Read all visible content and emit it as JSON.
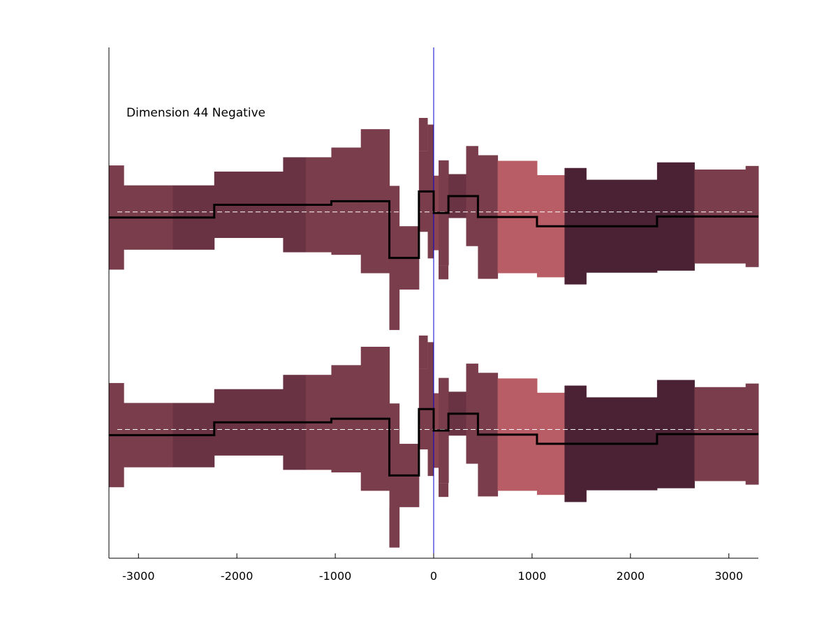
{
  "chart_data": {
    "type": "step-band",
    "title": "",
    "annotation": "Dimension 44 Negative",
    "xlabel": "",
    "ylabel": "",
    "xlim": [
      -3300,
      3300
    ],
    "ylim": [
      0,
      100
    ],
    "xticks": [
      -3000,
      -2000,
      -1000,
      0,
      1000,
      2000,
      3000
    ],
    "xtick_labels": [
      "-3000",
      "-2000",
      "-1000",
      "0",
      "1000",
      "2000",
      "3000"
    ],
    "y_axis_ticks_shown": false,
    "grid": false,
    "zero_line_color": "#0000cc",
    "baseline_color": "#ffffff",
    "line_color": "#000000",
    "segments": [
      {
        "x0": -3300,
        "x1": -3150,
        "center": 66.7,
        "half": 10.2,
        "color": "#7a3d4b"
      },
      {
        "x0": -3150,
        "x1": -2650,
        "center": 66.7,
        "half": 6.3,
        "color": "#7a3d4b"
      },
      {
        "x0": -2650,
        "x1": -2230,
        "center": 66.7,
        "half": 6.3,
        "color": "#6a3344"
      },
      {
        "x0": -2230,
        "x1": -1530,
        "center": 69.2,
        "half": 6.5,
        "color": "#6a3344"
      },
      {
        "x0": -1530,
        "x1": -1300,
        "center": 69.2,
        "half": 9.3,
        "color": "#6a3344"
      },
      {
        "x0": -1300,
        "x1": -1040,
        "center": 69.2,
        "half": 9.3,
        "color": "#7a3d4b"
      },
      {
        "x0": -1040,
        "x1": -740,
        "center": 69.9,
        "half": 10.5,
        "color": "#7a3d4b"
      },
      {
        "x0": -740,
        "x1": -450,
        "center": 69.9,
        "half": 14.1,
        "color": "#7a3d4b"
      },
      {
        "x0": -450,
        "x1": -350,
        "center": 58.8,
        "half": 14.1,
        "color": "#7a3d4b"
      },
      {
        "x0": -350,
        "x1": -150,
        "center": 58.8,
        "half": 6.2,
        "color": "#7a3d4b"
      },
      {
        "x0": -150,
        "x1": -60,
        "center": 71.8,
        "half": 7.9,
        "color": "#7a3d4b"
      },
      {
        "x0": -60,
        "x1": 0,
        "center": 71.8,
        "half": 13.1,
        "color": "#7a3d4b"
      },
      {
        "x0": 0,
        "x1": 50,
        "center": 67.6,
        "half": 7.3,
        "color": "#8b4452"
      },
      {
        "x0": 50,
        "x1": 150,
        "center": 67.6,
        "half": 10.3,
        "color": "#7a3d4b"
      },
      {
        "x0": 150,
        "x1": 330,
        "center": 70.9,
        "half": 4.3,
        "color": "#6a3344"
      },
      {
        "x0": 330,
        "x1": 450,
        "center": 70.9,
        "half": 9.8,
        "color": "#7a3d4b"
      },
      {
        "x0": 450,
        "x1": 650,
        "center": 66.8,
        "half": 12.1,
        "color": "#7a3d4b"
      },
      {
        "x0": 650,
        "x1": 1050,
        "center": 66.8,
        "half": 11.0,
        "color": "#b85c65"
      },
      {
        "x0": 1050,
        "x1": 1330,
        "center": 65.0,
        "half": 10.0,
        "color": "#b85c65"
      },
      {
        "x0": 1330,
        "x1": 1550,
        "center": 65.0,
        "half": 11.4,
        "color": "#4a2234"
      },
      {
        "x0": 1550,
        "x1": 2270,
        "center": 65.0,
        "half": 9.1,
        "color": "#4a2234"
      },
      {
        "x0": 2270,
        "x1": 2650,
        "center": 66.9,
        "half": 10.6,
        "color": "#4a2234"
      },
      {
        "x0": 2650,
        "x1": 3170,
        "center": 66.9,
        "half": 9.2,
        "color": "#7a3d4b"
      },
      {
        "x0": 3170,
        "x1": 3300,
        "center": 66.9,
        "half": 9.9,
        "color": "#7a3d4b"
      }
    ],
    "whiskers": [
      {
        "x0": -450,
        "x1": -350,
        "y0": 44.7,
        "y1": 52.6,
        "color": "#7a3d4b"
      },
      {
        "x0": -150,
        "x1": -60,
        "y0": 79.7,
        "y1": 86.2,
        "color": "#7a3d4b"
      },
      {
        "x0": 50,
        "x1": 150,
        "y0": 54.6,
        "y1": 57.3,
        "color": "#7a3d4b"
      }
    ],
    "panels": [
      {
        "offset": 0,
        "baseline": 67.8
      },
      {
        "offset": -42.6,
        "baseline": 25.2
      }
    ]
  }
}
